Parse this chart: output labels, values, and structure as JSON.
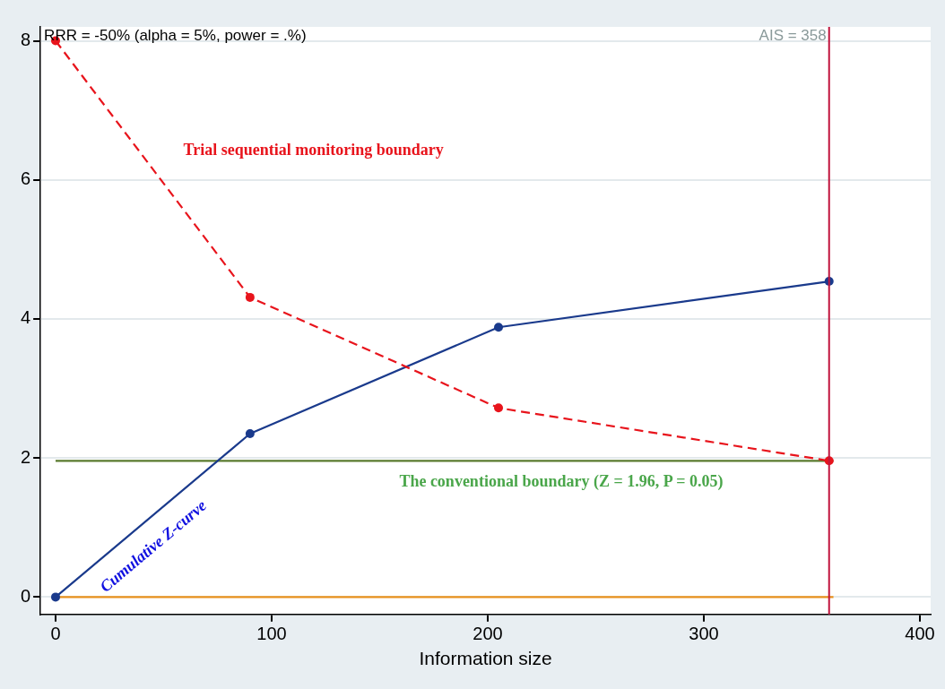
{
  "chart_data": {
    "type": "line",
    "xlabel": "Information size",
    "xlim": [
      -7,
      405
    ],
    "xticks": [
      0,
      100,
      200,
      300,
      400
    ],
    "ylim": [
      -0.25,
      8.2
    ],
    "yticks": [
      0,
      2,
      4,
      6,
      8
    ],
    "grid": "y",
    "legend": false,
    "marker": "circle",
    "series": [
      {
        "name": "Trial sequential monitoring boundary",
        "color": "#e8141c",
        "line_style": "dashed",
        "x": [
          0,
          90,
          205,
          358
        ],
        "values": [
          8,
          4.31,
          2.72,
          1.96
        ]
      },
      {
        "name": "Cumulative Z-curve",
        "color": "#1a3a8c",
        "x": [
          0,
          90,
          205,
          358
        ],
        "values": [
          0,
          2.35,
          3.88,
          4.54
        ]
      },
      {
        "name": "The conventional boundary (Z = 1.96, P = 0.05)",
        "color": "#5a7a2e",
        "marker": "none",
        "x": [
          0,
          360
        ],
        "values": [
          1.96,
          1.96
        ]
      },
      {
        "color": "#e8901c",
        "marker": "none",
        "x": [
          0,
          360
        ],
        "values": [
          0,
          0
        ]
      }
    ],
    "ref_lines": [
      {
        "axis": "x",
        "value": 358,
        "label": "AIS = 358",
        "color": "#c0143c"
      }
    ],
    "annotations": [
      "RRR = -50% (alpha = 5%, power = .%)"
    ]
  }
}
